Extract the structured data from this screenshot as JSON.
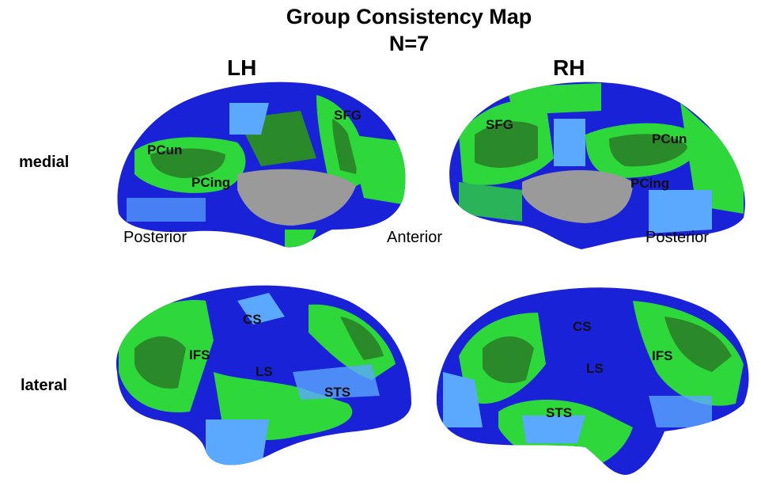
{
  "title": "Group Consistency Map",
  "subtitle": "N=7",
  "hemispheres": {
    "left": "LH",
    "right": "RH"
  },
  "rows": {
    "medial": "medial",
    "lateral": "lateral"
  },
  "directions": {
    "posterior_left": "Posterior",
    "anterior": "Anterior",
    "posterior_right": "Posterior"
  },
  "regions": {
    "lh_medial": [
      "SFG",
      "PCun",
      "PCing"
    ],
    "rh_medial": [
      "SFG",
      "PCun",
      "PCing"
    ],
    "lh_lateral": [
      "CS",
      "IFS",
      "LS",
      "STS"
    ],
    "rh_lateral": [
      "CS",
      "IFS",
      "LS",
      "STS"
    ]
  },
  "colors": {
    "blue": "#1a22d8",
    "light_blue": "#5aa8ff",
    "green": "#2fd83a",
    "dark_green": "#2a8a2a",
    "gray": "#9a9a9a"
  }
}
